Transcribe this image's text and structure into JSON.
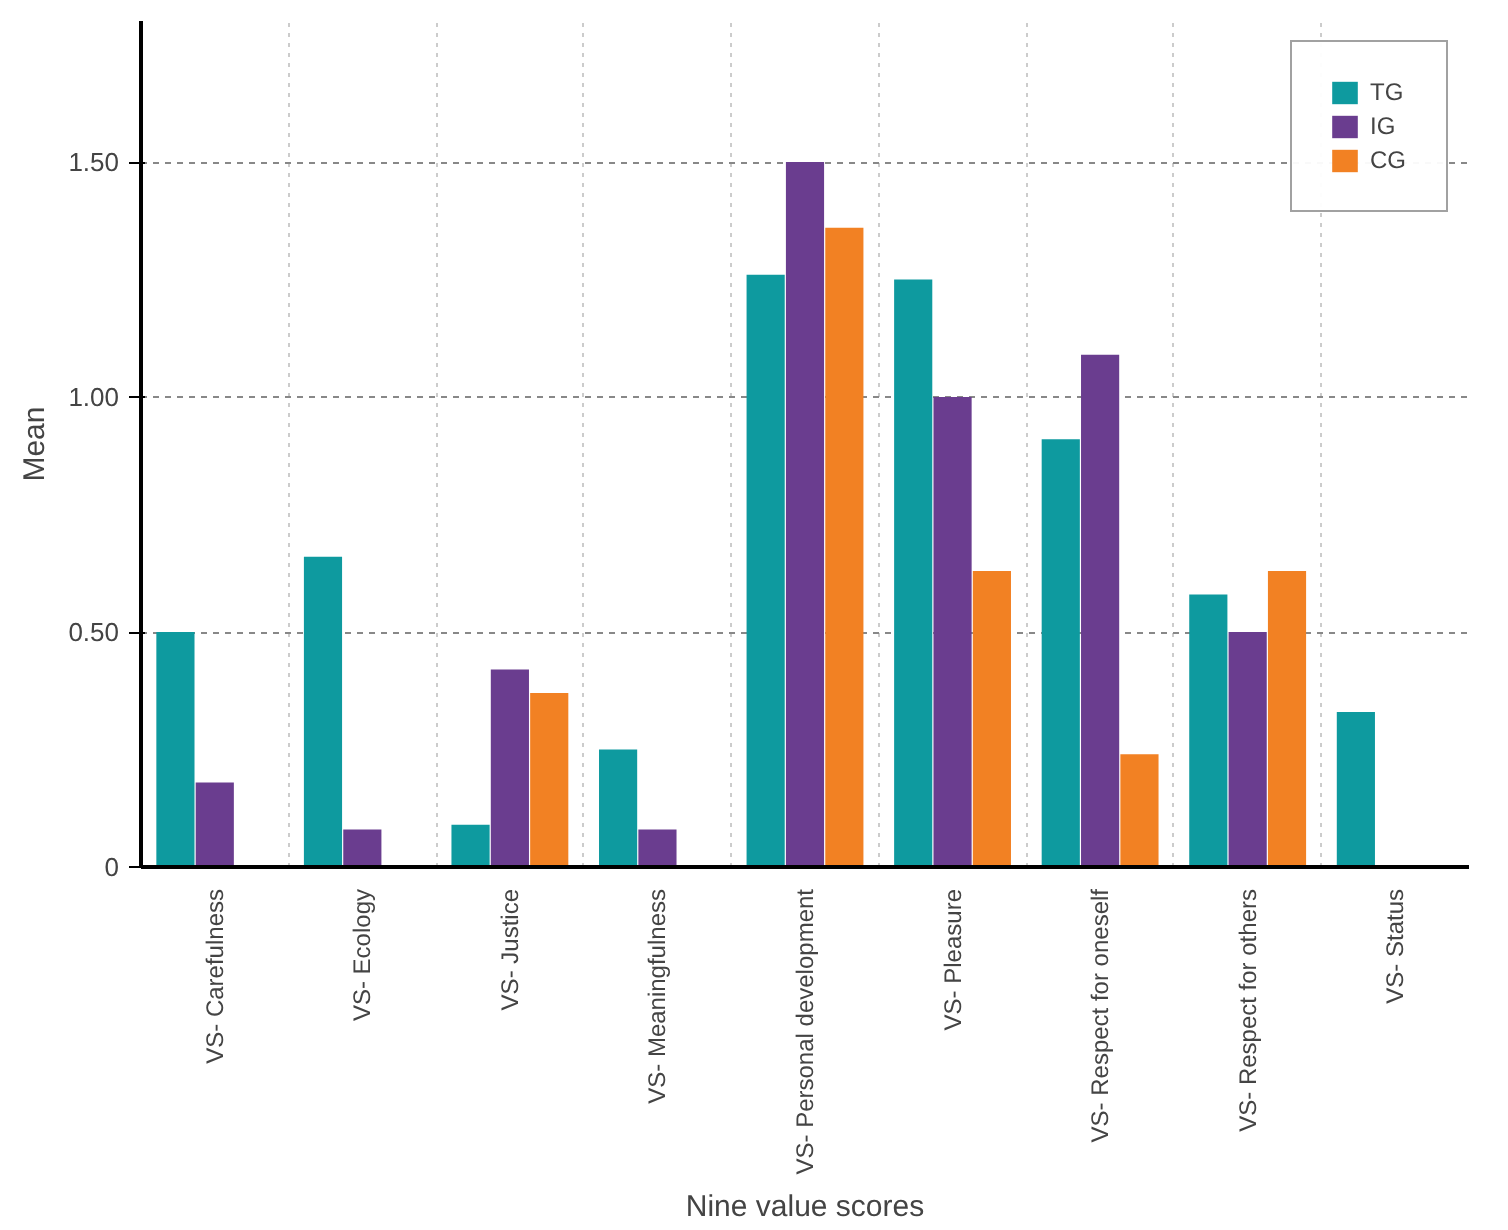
{
  "chart_data": {
    "type": "bar",
    "xlabel": "Nine value scores",
    "ylabel": "Mean",
    "categories": [
      "VS- Carefulness",
      "VS- Ecology",
      "VS- Justice",
      "VS- Meaningfulness",
      "VS- Personal development",
      "VS- Pleasure",
      "VS- Respect for oneself",
      "VS- Respect for others",
      "VS- Status"
    ],
    "series": [
      {
        "name": "TG",
        "color": "#0e9a9f",
        "values": [
          0.5,
          0.66,
          0.09,
          0.25,
          1.26,
          1.25,
          0.91,
          0.58,
          0.33
        ]
      },
      {
        "name": "IG",
        "color": "#6a3d8f",
        "values": [
          0.18,
          0.08,
          0.42,
          0.08,
          1.5,
          1.0,
          1.09,
          0.5,
          0
        ]
      },
      {
        "name": "CG",
        "color": "#f28123",
        "values": [
          0,
          0,
          0.37,
          0,
          1.36,
          0.63,
          0.24,
          0.63,
          0
        ]
      }
    ],
    "ylim": [
      0,
      1.8
    ],
    "yticks": [
      0,
      {
        "value": 0.5,
        "label": "0.50"
      },
      {
        "value": 1.0,
        "label": "1.00"
      },
      {
        "value": 1.5,
        "label": "1.50"
      }
    ],
    "grid": true,
    "legend": "top right"
  }
}
